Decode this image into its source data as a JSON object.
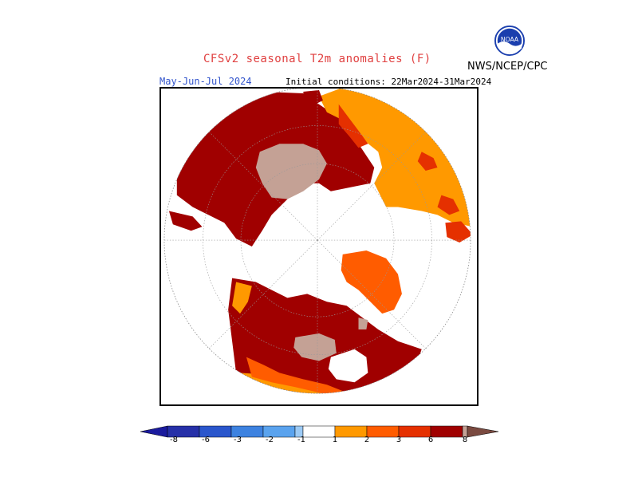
{
  "header": {
    "title": "CFSv2 seasonal T2m anomalies (F)",
    "period": "May-Jun-Jul 2024",
    "initial_conditions": "Initial conditions: 22Mar2024-31Mar2024",
    "agency": "NWS/NCEP/CPC",
    "logo_text": "NOAA"
  },
  "colors": {
    "anom_neg8": "#1b1b9e",
    "anom_neg6": "#2a56cc",
    "anom_neg3": "#3d82e0",
    "anom_neg2": "#5aa3ee",
    "anom_neg1": "#9ccaf5",
    "neutral": "#ffffff",
    "anom_1": "#ff9900",
    "anom_2": "#ff5c00",
    "anom_3": "#e53000",
    "anom_6": "#a00000",
    "anom_8": "#c4a195",
    "anom_8plus": "#7a4a40"
  },
  "legend": {
    "tick_labels": [
      "-8",
      "-6",
      "-3",
      "-2",
      "-1",
      "1",
      "2",
      "3",
      "6",
      "8"
    ]
  }
}
